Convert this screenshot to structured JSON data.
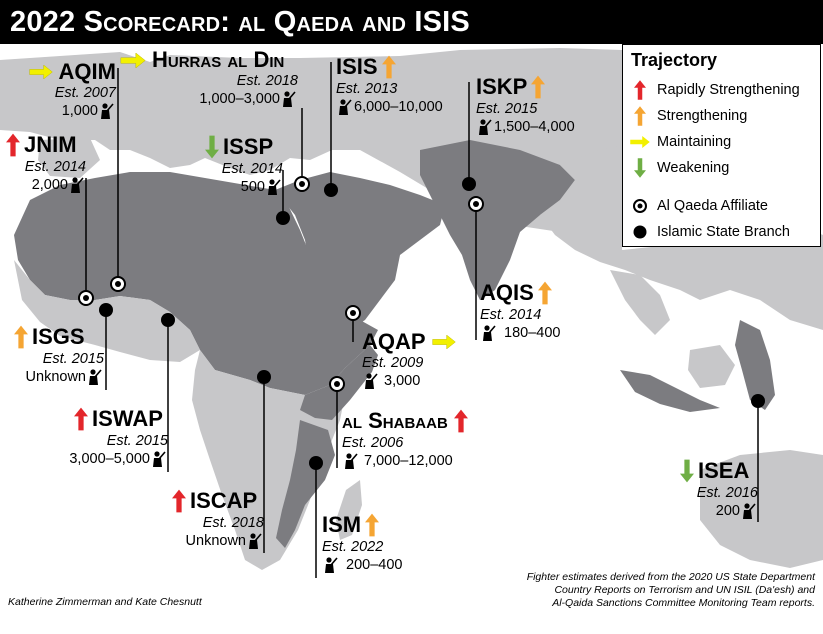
{
  "title": "2022 Scorecard: al Qaeda and ISIS",
  "colors": {
    "rapidly_strengthening": "#e3262b",
    "strengthening": "#f5a533",
    "maintaining": "#f2f000",
    "weakening": "#6fae45",
    "land_highlight": "#7c7c80",
    "land_other": "#c7c7c9",
    "sea": "#ffffff"
  },
  "legend": {
    "heading": "Trajectory",
    "items": [
      {
        "label": "Rapidly Strengthening",
        "icon": "red-up-arrow-icon"
      },
      {
        "label": "Strengthening",
        "icon": "orange-up-arrow-icon"
      },
      {
        "label": "Maintaining",
        "icon": "yellow-right-arrow-icon"
      },
      {
        "label": "Weakening",
        "icon": "green-down-arrow-icon"
      },
      {
        "label": "Al Qaeda Affiliate",
        "icon": "al-qaeda-marker-icon"
      },
      {
        "label": "Islamic State Branch",
        "icon": "islamic-state-marker-icon"
      }
    ]
  },
  "groups": {
    "aqim": {
      "name": "AQIM",
      "est": "Est. 2007",
      "fighters": "1,000",
      "trajectory": "maintaining",
      "affiliation": "al-qaeda"
    },
    "hurras": {
      "name": "Hurras al Din",
      "est": "Est. 2018",
      "fighters": "1,000–3,000",
      "trajectory": "maintaining",
      "affiliation": "al-qaeda"
    },
    "isis": {
      "name": "ISIS",
      "est": "Est. 2013",
      "fighters": "6,000–10,000",
      "trajectory": "strengthening",
      "affiliation": "islamic-state"
    },
    "iskp": {
      "name": "ISKP",
      "est": "Est. 2015",
      "fighters": "1,500–4,000",
      "trajectory": "strengthening",
      "affiliation": "islamic-state"
    },
    "jnim": {
      "name": "JNIM",
      "est": "Est. 2014",
      "fighters": "2,000",
      "trajectory": "rapidly-strengthening",
      "affiliation": "al-qaeda"
    },
    "issp": {
      "name": "ISSP",
      "est": "Est. 2014",
      "fighters": "500",
      "trajectory": "weakening",
      "affiliation": "islamic-state"
    },
    "aqis": {
      "name": "AQIS",
      "est": "Est. 2014",
      "fighters": "180–400",
      "trajectory": "strengthening",
      "affiliation": "al-qaeda"
    },
    "isgs": {
      "name": "ISGS",
      "est": "Est. 2015",
      "fighters": "Unknown",
      "trajectory": "strengthening",
      "affiliation": "islamic-state"
    },
    "aqap": {
      "name": "AQAP",
      "est": "Est. 2009",
      "fighters": "3,000",
      "trajectory": "maintaining",
      "affiliation": "al-qaeda"
    },
    "iswap": {
      "name": "ISWAP",
      "est": "Est. 2015",
      "fighters": "3,000–5,000",
      "trajectory": "rapidly-strengthening",
      "affiliation": "islamic-state"
    },
    "shabaab": {
      "name": "al Shabaab",
      "est": "Est. 2006",
      "fighters": "7,000–12,000",
      "trajectory": "rapidly-strengthening",
      "affiliation": "al-qaeda"
    },
    "isea": {
      "name": "ISEA",
      "est": "Est. 2016",
      "fighters": "200",
      "trajectory": "weakening",
      "affiliation": "islamic-state"
    },
    "iscap": {
      "name": "ISCAP",
      "est": "Est. 2018",
      "fighters": "Unknown",
      "trajectory": "rapidly-strengthening",
      "affiliation": "islamic-state"
    },
    "ism": {
      "name": "ISM",
      "est": "Est. 2022",
      "fighters": "200–400",
      "trajectory": "strengthening",
      "affiliation": "islamic-state"
    }
  },
  "credit": "Katherine Zimmerman and Kate Chesnutt",
  "source": [
    "Fighter estimates derived from the 2020 US State Department",
    "Country Reports on Terrorism and UN ISIL (Da'esh) and",
    "Al-Qaida Sanctions Committee Monitoring Team reports."
  ]
}
